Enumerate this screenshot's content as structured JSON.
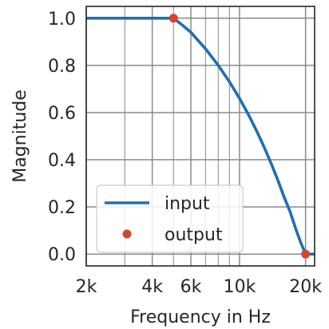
{
  "chart_data": {
    "type": "line",
    "title": "",
    "xlabel": "Frequency in Hz",
    "ylabel": "Magnitude",
    "x_scale": "log",
    "xlim": [
      2000,
      22000
    ],
    "ylim": [
      -0.05,
      1.05
    ],
    "x_ticks": [
      {
        "value": 2000,
        "label": "2k"
      },
      {
        "value": 4000,
        "label": "4k"
      },
      {
        "value": 6000,
        "label": "6k"
      },
      {
        "value": 10000,
        "label": "10k"
      },
      {
        "value": 20000,
        "label": "20k"
      }
    ],
    "x_minor_ticks": [
      3000,
      5000,
      7000,
      8000,
      9000
    ],
    "y_ticks": [
      {
        "value": 0.0,
        "label": "0.0"
      },
      {
        "value": 0.2,
        "label": "0.2"
      },
      {
        "value": 0.4,
        "label": "0.4"
      },
      {
        "value": 0.6,
        "label": "0.6"
      },
      {
        "value": 0.8,
        "label": "0.8"
      },
      {
        "value": 1.0,
        "label": "1.0"
      }
    ],
    "grid": true,
    "legend": {
      "placement": "lower-left"
    },
    "series": [
      {
        "name": "input",
        "kind": "line",
        "color": "#1f6eb4",
        "x": [
          2000,
          3000,
          4000,
          5000,
          5500,
          6000,
          7000,
          8000,
          9000,
          10000,
          11000,
          12000,
          13000,
          14000,
          15000,
          16000,
          17000,
          18000,
          19000,
          20000,
          22000
        ],
        "y": [
          1.0,
          1.0,
          1.0,
          1.0,
          0.97,
          0.94,
          0.87,
          0.8,
          0.73,
          0.66,
          0.59,
          0.52,
          0.45,
          0.38,
          0.31,
          0.24,
          0.18,
          0.11,
          0.05,
          0.0,
          0.0
        ]
      },
      {
        "name": "output",
        "kind": "scatter",
        "color": "#d9432b",
        "x": [
          5000,
          20000
        ],
        "y": [
          1.0,
          0.0
        ]
      }
    ]
  }
}
